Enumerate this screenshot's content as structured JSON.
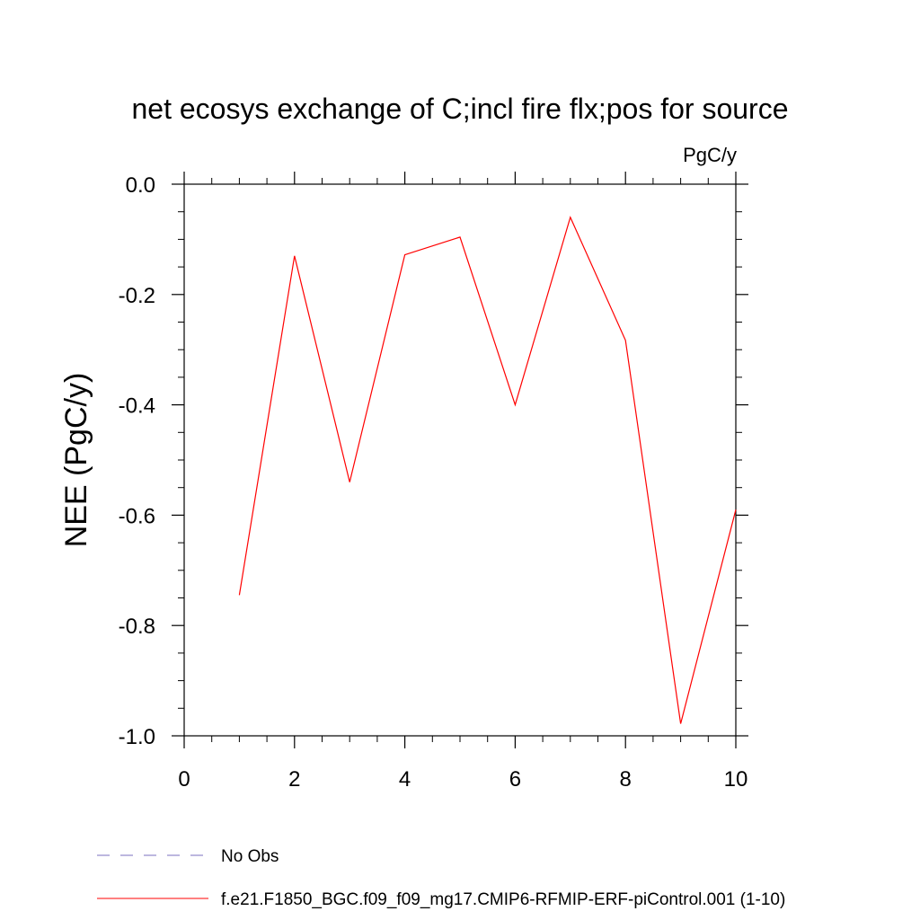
{
  "chart_data": {
    "type": "line",
    "title": "net ecosys exchange of C;incl fire flx;pos for source",
    "units_label": "PgC/y",
    "ylabel": "NEE  (PgC/y)",
    "xlabel": "",
    "xlim": [
      0,
      10
    ],
    "ylim": [
      -1.0,
      0.0
    ],
    "x_ticks": [
      0,
      2,
      4,
      6,
      8,
      10
    ],
    "x_tick_labels": [
      "0",
      "2",
      "4",
      "6",
      "8",
      "10"
    ],
    "y_ticks": [
      0.0,
      -0.2,
      -0.4,
      -0.6,
      -0.8,
      -1.0
    ],
    "y_tick_labels": [
      "0.0",
      "-0.2",
      "-0.4",
      "-0.6",
      "-0.8",
      "-1.0"
    ],
    "grid": false,
    "legend_position": "bottom",
    "legend": [
      {
        "label": "No Obs",
        "style": "dashed",
        "color": "#7b6fbf"
      },
      {
        "label": "f.e21.F1850_BGC.f09_f09_mg17.CMIP6-RFMIP-ERF-piControl.001 (1-10)",
        "style": "solid",
        "color": "#ff0000"
      }
    ],
    "series": [
      {
        "name": "f.e21.F1850_BGC.f09_f09_mg17.CMIP6-RFMIP-ERF-piControl.001 (1-10)",
        "color": "#ff0000",
        "x": [
          1,
          2,
          3,
          4,
          5,
          6,
          7,
          8,
          9,
          10
        ],
        "y": [
          -0.745,
          -0.13,
          -0.54,
          -0.128,
          -0.096,
          -0.4,
          -0.06,
          -0.283,
          -0.978,
          -0.59
        ]
      }
    ]
  }
}
